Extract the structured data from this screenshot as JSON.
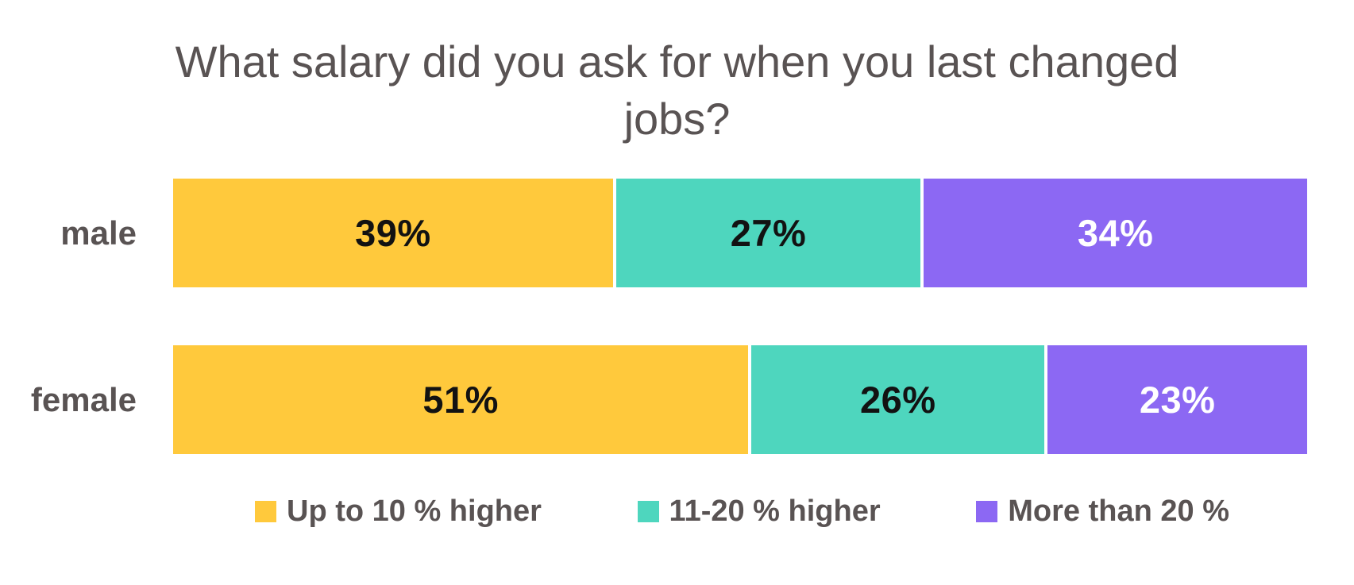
{
  "chart_data": {
    "type": "bar",
    "orientation": "horizontal-stacked",
    "title": "What salary did you ask for when you last changed jobs?",
    "categories": [
      "male",
      "female"
    ],
    "series": [
      {
        "name": "Up to 10 % higher",
        "color": "#FFC93C",
        "label_color": "#121212",
        "values": [
          39,
          51
        ],
        "labels": [
          "39%",
          "51%"
        ]
      },
      {
        "name": "11-20 % higher",
        "color": "#4ED6BE",
        "label_color": "#121212",
        "values": [
          27,
          26
        ],
        "labels": [
          "27%",
          "26%"
        ]
      },
      {
        "name": "More than 20 %",
        "color": "#8C68F3",
        "label_color": "#FFFFFF",
        "values": [
          34,
          23
        ],
        "labels": [
          "34%",
          "23%"
        ]
      }
    ],
    "value_suffix": "%",
    "xlim": [
      0,
      100
    ],
    "grid": false,
    "legend_position": "bottom"
  },
  "styles": {
    "background_color": "#FFFFFF",
    "text_color": "#595353",
    "axis_line_color": "#FFFFFF",
    "segment_divider_color": "#FFFFFF"
  }
}
